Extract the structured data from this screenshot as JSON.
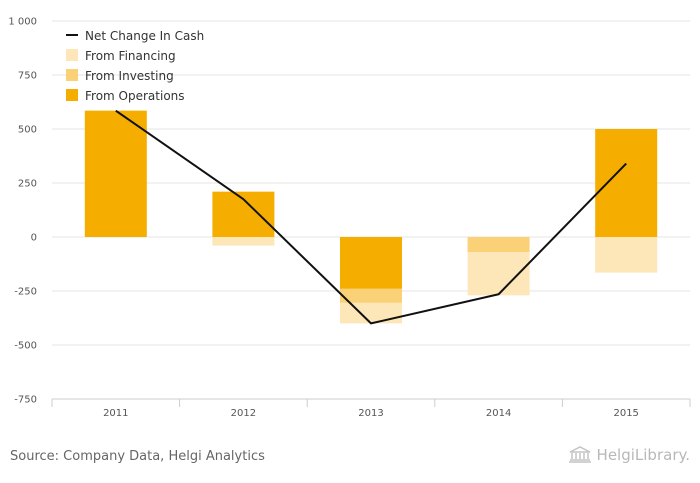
{
  "chart_data": {
    "type": "bar",
    "categories": [
      "2011",
      "2012",
      "2013",
      "2014",
      "2015"
    ],
    "ylim": [
      -750,
      1000
    ],
    "y_ticks": [
      -750,
      -500,
      -250,
      0,
      250,
      500,
      750,
      1000
    ],
    "y_tick_labels": [
      "-750",
      "-500",
      "-250",
      "0",
      "250",
      "500",
      "750",
      "1 000"
    ],
    "legend_placement": "top-left",
    "grid": true,
    "series": [
      {
        "name": "From Operations",
        "kind": "bar",
        "color": "#f5ad00",
        "values": [
          585,
          210,
          -240,
          0,
          500
        ]
      },
      {
        "name": "From Investing",
        "kind": "bar",
        "color": "#fbd177",
        "values": [
          0,
          0,
          -65,
          -70,
          0
        ]
      },
      {
        "name": "From Financing",
        "kind": "bar",
        "color": "#fde7b9",
        "values": [
          0,
          -40,
          -95,
          -200,
          -165
        ]
      },
      {
        "name": "Net Change In Cash",
        "kind": "line",
        "color": "#111111",
        "values": [
          585,
          175,
          -400,
          -265,
          340
        ]
      }
    ],
    "legend_order": [
      "Net Change In Cash",
      "From Financing",
      "From Investing",
      "From Operations"
    ]
  },
  "footer": {
    "source": "Source: Company Data, Helgi Analytics",
    "brand": "HelgiLibrary."
  }
}
